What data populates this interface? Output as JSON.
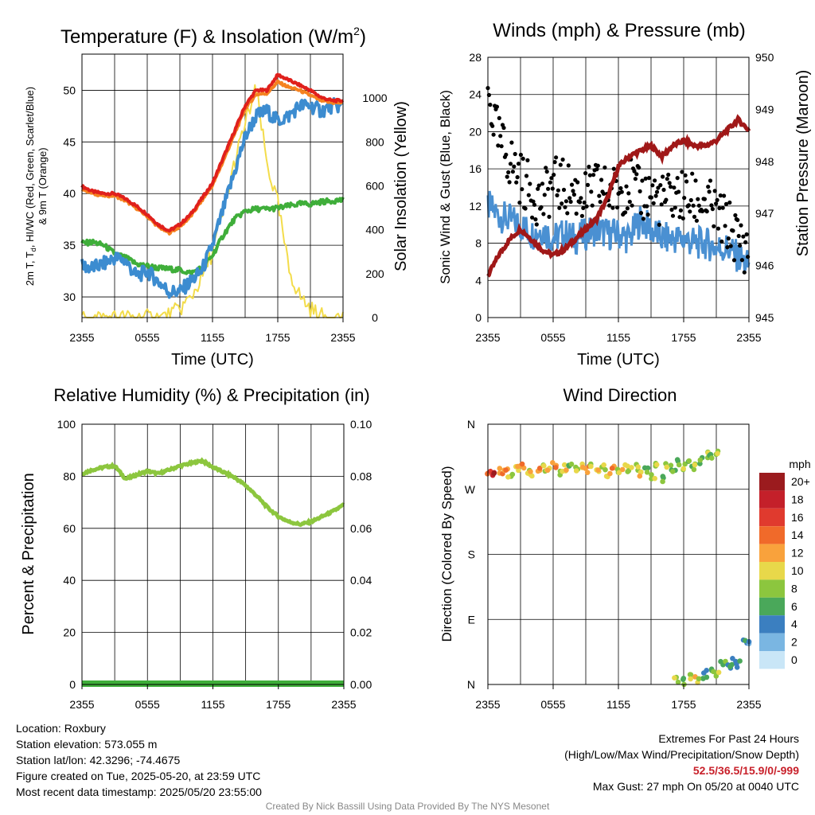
{
  "panels": {
    "temp": {
      "title": "Temperature (F) & Insolation (W/m",
      "title_sup": "2",
      "title_end": ")",
      "ylabel_lines": [
        "2m T, T",
        "d",
        ", HI/WC (Red, Green, Scarlet/Blue)",
        "& 9m T (Orange)"
      ],
      "ylabel_right": "Solar Insolation (Yellow)",
      "xlabel": "Time (UTC)"
    },
    "wind": {
      "title": "Winds (mph) & Pressure (mb)",
      "ylabel": "Sonic Wind & Gust (Blue, Black)",
      "ylabel_right": "Station Pressure (Maroon)",
      "xlabel": "Time (UTC)"
    },
    "rh": {
      "title": "Relative Humidity (%) & Precipitation (in)",
      "ylabel": "Percent & Precipitation"
    },
    "dir": {
      "title": "Wind Direction",
      "ylabel": "Direction (Colored By Speed)",
      "colorbar_title": "mph",
      "colorbar_labels": [
        "20+",
        "18",
        "16",
        "14",
        "12",
        "10",
        "8",
        "6",
        "4",
        "2",
        "0"
      ],
      "colorbar_colors": [
        "#9b1b1e",
        "#c4202a",
        "#e03a2e",
        "#f06a2a",
        "#f9a23c",
        "#e8d84a",
        "#8cc63e",
        "#4aa85a",
        "#3b7fc0",
        "#7ab6e2",
        "#c9e6f7"
      ]
    }
  },
  "info": {
    "location": "Location: Roxbury",
    "elevation": "Station elevation: 573.055 m",
    "latlon": "Station lat/lon: 42.3296; -74.4675",
    "created": "Figure created on Tue, 2025-05-20, at 23:59 UTC",
    "recent": "Most recent data timestamp: 2025/05/20 23:55:00",
    "extremes_title": "Extremes For Past 24 Hours",
    "extremes_sub": "(High/Low/Max Wind/Precipitation/Snow Depth)",
    "extremes_values": "52.5/36.5/15.9/0/-999",
    "max_gust": "Max Gust: 27 mph On 05/20 at 0040 UTC",
    "credit": "Created By Nick Bassill Using Data Provided By The NYS Mesonet"
  },
  "chart_data": [
    {
      "type": "line",
      "panel": "temp",
      "title": "Temperature (F) & Insolation (W/m2)",
      "xlabel": "Time (UTC)",
      "ylabel": "2m T, Td, HI/WC (Red, Green, Scarlet/Blue) & 9m T (Orange)",
      "ylabel_right": "Solar Insolation (Yellow)",
      "x_ticks": [
        "2355",
        "0555",
        "1155",
        "1755",
        "2355"
      ],
      "x_hours": [
        0,
        1,
        2,
        3,
        4,
        5,
        6,
        7,
        8,
        9,
        10,
        11,
        12,
        13,
        14,
        15,
        16,
        17,
        18,
        19,
        20,
        21,
        22,
        23,
        24
      ],
      "ylim": [
        28,
        53.5
      ],
      "yticks": [
        30,
        35,
        40,
        45,
        50
      ],
      "ylim_right": [
        0,
        1200
      ],
      "yticks_right": [
        0,
        200,
        400,
        600,
        800,
        1000
      ],
      "series": [
        {
          "name": "2m T",
          "color": "#e0201c",
          "axis": "left",
          "values": [
            40.7,
            40.2,
            40.0,
            40.0,
            39.5,
            38.8,
            38.0,
            37.0,
            36.4,
            37.0,
            38.0,
            39.5,
            41.0,
            43.5,
            46.0,
            48.5,
            50.0,
            50.0,
            51.5,
            51.0,
            50.5,
            50.0,
            49.3,
            49.0,
            49.0
          ]
        },
        {
          "name": "9m T",
          "color": "#f58220",
          "axis": "left",
          "values": [
            40.5,
            40.0,
            39.8,
            39.8,
            39.3,
            38.6,
            37.8,
            36.8,
            36.2,
            36.8,
            37.8,
            39.3,
            40.8,
            43.2,
            45.7,
            48.2,
            49.6,
            49.7,
            50.8,
            50.3,
            50.0,
            49.5,
            49.0,
            48.8,
            48.8
          ]
        },
        {
          "name": "HI/WC",
          "color": "#3c8cd0",
          "axis": "left",
          "values": [
            33.0,
            32.8,
            33.2,
            33.8,
            33.5,
            32.0,
            32.5,
            31.5,
            30.5,
            30.5,
            31.5,
            32.5,
            35.0,
            38.5,
            42.0,
            45.5,
            47.5,
            48.0,
            47.0,
            47.5,
            48.5,
            48.5,
            48.0,
            48.5,
            48.5
          ]
        },
        {
          "name": "2m Td",
          "color": "#3fae3a",
          "axis": "left",
          "values": [
            35.2,
            35.3,
            35.0,
            34.2,
            33.8,
            33.2,
            33.0,
            32.8,
            32.7,
            32.6,
            32.3,
            32.8,
            34.0,
            36.0,
            37.5,
            38.3,
            38.5,
            38.5,
            38.6,
            38.8,
            39.0,
            39.0,
            39.2,
            39.3,
            39.4
          ]
        },
        {
          "name": "Insolation",
          "color": "#f3dc4a",
          "axis": "right",
          "values": [
            0,
            0,
            0,
            0,
            0,
            0,
            0,
            0,
            10,
            40,
            90,
            180,
            300,
            480,
            700,
            880,
            1040,
            700,
            520,
            220,
            100,
            40,
            5,
            0,
            0
          ]
        }
      ]
    },
    {
      "type": "line",
      "panel": "wind",
      "title": "Winds (mph) & Pressure (mb)",
      "xlabel": "Time (UTC)",
      "ylabel": "Sonic Wind & Gust (Blue, Black)",
      "ylabel_right": "Station Pressure (Maroon)",
      "x_ticks": [
        "2355",
        "0555",
        "1155",
        "1755",
        "2355"
      ],
      "x_hours": [
        0,
        1,
        2,
        3,
        4,
        5,
        6,
        7,
        8,
        9,
        10,
        11,
        12,
        13,
        14,
        15,
        16,
        17,
        18,
        19,
        20,
        21,
        22,
        23,
        24
      ],
      "ylim": [
        0,
        28
      ],
      "yticks": [
        0,
        4,
        8,
        12,
        16,
        20,
        24,
        28
      ],
      "ylim_right": [
        945,
        950
      ],
      "yticks_right": [
        945,
        946,
        947,
        948,
        949,
        950
      ],
      "series": [
        {
          "name": "Sonic Wind",
          "color": "#4a90d2",
          "axis": "left",
          "values": [
            12.0,
            11.0,
            10.5,
            10.0,
            9.0,
            9.5,
            8.5,
            9.0,
            8.5,
            9.0,
            9.5,
            9.0,
            9.0,
            8.5,
            10.5,
            9.5,
            8.5,
            8.5,
            8.5,
            8.0,
            8.0,
            7.5,
            7.5,
            6.5,
            5.5
          ]
        },
        {
          "name": "Gust",
          "color": "#000000",
          "axis": "left",
          "values": [
            24.0,
            19.0,
            17.0,
            15.0,
            13.5,
            12.5,
            14.5,
            14.0,
            13.5,
            13.0,
            14.0,
            13.5,
            13.5,
            14.5,
            13.0,
            13.5,
            12.5,
            13.0,
            13.0,
            12.5,
            12.5,
            11.0,
            10.0,
            8.5,
            7.0
          ]
        },
        {
          "name": "Station Pressure",
          "color": "#a01818",
          "axis": "right",
          "values": [
            945.8,
            946.2,
            946.5,
            946.7,
            946.5,
            946.3,
            946.2,
            946.3,
            946.5,
            946.7,
            946.9,
            947.3,
            947.9,
            948.1,
            948.2,
            948.3,
            948.1,
            948.3,
            948.4,
            948.3,
            948.3,
            948.4,
            948.6,
            948.8,
            948.6
          ]
        }
      ]
    },
    {
      "type": "line",
      "panel": "rh",
      "title": "Relative Humidity (%) & Precipitation (in)",
      "ylabel": "Percent & Precipitation",
      "x_ticks": [
        "2355",
        "0555",
        "1155",
        "1755",
        "2355"
      ],
      "x_hours": [
        0,
        1,
        2,
        3,
        4,
        5,
        6,
        7,
        8,
        9,
        10,
        11,
        12,
        13,
        14,
        15,
        16,
        17,
        18,
        19,
        20,
        21,
        22,
        23,
        24
      ],
      "ylim": [
        0,
        100
      ],
      "yticks": [
        0,
        20,
        40,
        60,
        80,
        100
      ],
      "ylim_right": [
        0,
        0.1
      ],
      "yticks_right": [
        "0.00",
        "0.02",
        "0.04",
        "0.06",
        "0.08",
        "0.10"
      ],
      "series": [
        {
          "name": "Relative Humidity",
          "color": "#8cc63e",
          "axis": "left",
          "values": [
            81.0,
            82.5,
            83.5,
            84.0,
            79.0,
            80.5,
            82.0,
            81.0,
            82.5,
            84.0,
            85.0,
            86.0,
            83.5,
            81.5,
            79.5,
            76.5,
            72.5,
            68.0,
            64.5,
            62.5,
            61.5,
            62.5,
            64.5,
            66.5,
            69.0
          ]
        },
        {
          "name": "Precipitation",
          "color": "#3fae3a",
          "axis": "right",
          "values": [
            0,
            0,
            0,
            0,
            0,
            0,
            0,
            0,
            0,
            0,
            0,
            0,
            0,
            0,
            0,
            0,
            0,
            0,
            0,
            0,
            0,
            0,
            0,
            0,
            0
          ]
        }
      ]
    },
    {
      "type": "scatter",
      "panel": "dir",
      "title": "Wind Direction",
      "ylabel": "Direction (Colored By Speed)",
      "x_ticks": [
        "2355",
        "0555",
        "1155",
        "1755",
        "2355"
      ],
      "y_ticks": [
        "N",
        "E",
        "S",
        "W",
        "N"
      ],
      "ylim_deg": [
        0,
        360
      ],
      "legend_title": "mph",
      "points": [
        [
          0.0,
          293,
          14
        ],
        [
          0.5,
          290,
          18
        ],
        [
          1.0,
          295,
          12
        ],
        [
          1.5,
          300,
          12
        ],
        [
          2.0,
          292,
          8
        ],
        [
          2.5,
          298,
          10
        ],
        [
          3.0,
          302,
          12
        ],
        [
          3.5,
          296,
          8
        ],
        [
          4.0,
          292,
          10
        ],
        [
          4.5,
          298,
          12
        ],
        [
          5.0,
          300,
          8
        ],
        [
          5.5,
          296,
          10
        ],
        [
          6.0,
          302,
          12
        ],
        [
          6.5,
          294,
          8
        ],
        [
          7.0,
          300,
          10
        ],
        [
          7.5,
          304,
          6
        ],
        [
          8.0,
          296,
          8
        ],
        [
          8.5,
          300,
          10
        ],
        [
          9.0,
          298,
          12
        ],
        [
          9.5,
          303,
          8
        ],
        [
          10.0,
          296,
          10
        ],
        [
          10.5,
          300,
          8
        ],
        [
          11.0,
          292,
          10
        ],
        [
          11.5,
          298,
          12
        ],
        [
          12.0,
          294,
          8
        ],
        [
          12.5,
          302,
          10
        ],
        [
          13.0,
          296,
          8
        ],
        [
          13.5,
          300,
          8
        ],
        [
          14.0,
          290,
          10
        ],
        [
          14.5,
          298,
          6
        ],
        [
          15.0,
          286,
          8
        ],
        [
          15.5,
          302,
          8
        ],
        [
          16.0,
          283,
          6
        ],
        [
          16.5,
          304,
          8
        ],
        [
          17.0,
          294,
          6
        ],
        [
          17.5,
          308,
          6
        ],
        [
          18.0,
          300,
          8
        ],
        [
          18.5,
          306,
          6
        ],
        [
          19.0,
          300,
          8
        ],
        [
          19.5,
          310,
          6
        ],
        [
          20.0,
          318,
          8
        ],
        [
          20.5,
          318,
          6
        ],
        [
          21.0,
          320,
          8
        ],
        [
          17.2,
          8,
          8
        ],
        [
          17.8,
          5,
          6
        ],
        [
          18.5,
          12,
          8
        ],
        [
          19.0,
          6,
          10
        ],
        [
          19.5,
          10,
          6
        ],
        [
          20.0,
          15,
          4
        ],
        [
          20.5,
          20,
          6
        ],
        [
          21.0,
          12,
          8
        ],
        [
          21.5,
          30,
          6
        ],
        [
          22.0,
          25,
          4
        ],
        [
          22.5,
          32,
          4
        ],
        [
          23.0,
          28,
          4
        ],
        [
          23.5,
          60,
          4
        ],
        [
          24.0,
          55,
          2
        ]
      ]
    }
  ]
}
